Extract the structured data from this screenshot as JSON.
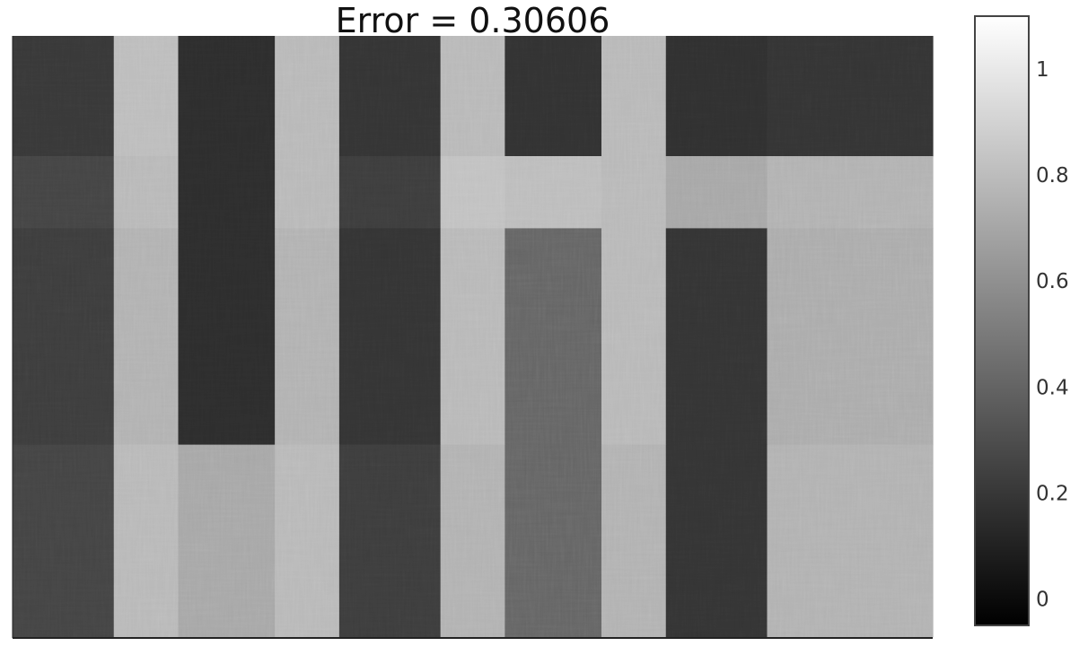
{
  "chart_data": {
    "type": "heatmap",
    "title": "Error = 0.30606",
    "colormap": "gray",
    "colorbar": {
      "range": [
        -0.05,
        1.1
      ],
      "ticks": [
        0,
        0.2,
        0.4,
        0.6,
        0.8,
        1
      ],
      "tick_labels": [
        "0",
        "0.2",
        "0.4",
        "0.6",
        "0.8",
        "1"
      ]
    },
    "column_blocks": [
      0.11,
      0.07,
      0.105,
      0.07,
      0.11,
      0.07,
      0.105,
      0.07,
      0.11,
      0.18
    ],
    "row_blocks": [
      0.2,
      0.12,
      0.36,
      0.32
    ],
    "block_values": [
      [
        0.2,
        0.8,
        0.15,
        0.78,
        0.18,
        0.78,
        0.17,
        0.78,
        0.16,
        0.18
      ],
      [
        0.25,
        0.78,
        0.15,
        0.78,
        0.22,
        0.82,
        0.8,
        0.78,
        0.7,
        0.75
      ],
      [
        0.22,
        0.75,
        0.15,
        0.75,
        0.18,
        0.78,
        0.4,
        0.78,
        0.18,
        0.72
      ],
      [
        0.25,
        0.78,
        0.7,
        0.78,
        0.22,
        0.75,
        0.4,
        0.75,
        0.18,
        0.75
      ]
    ]
  }
}
